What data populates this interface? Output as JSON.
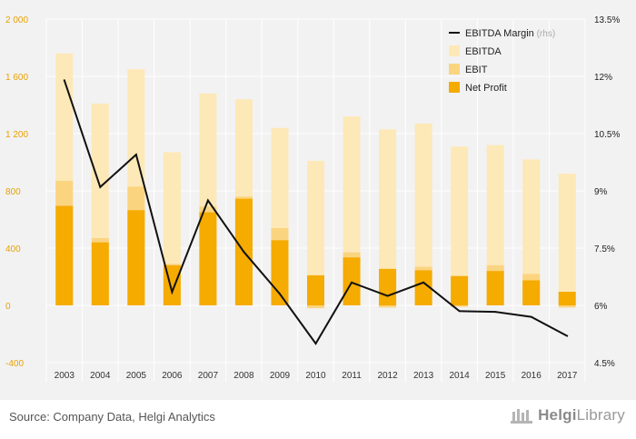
{
  "chart_data": {
    "type": "bar",
    "categories": [
      "2003",
      "2004",
      "2005",
      "2006",
      "2007",
      "2008",
      "2009",
      "2010",
      "2011",
      "2012",
      "2013",
      "2014",
      "2015",
      "2016",
      "2017"
    ],
    "series": [
      {
        "name": "EBITDA",
        "kind": "bar",
        "axis": "left",
        "color": "#fde8b8",
        "values": [
          1760,
          1410,
          1650,
          1070,
          1480,
          1440,
          1240,
          1010,
          1320,
          1230,
          1270,
          1110,
          1120,
          1020,
          920
        ]
      },
      {
        "name": "EBIT",
        "kind": "bar",
        "axis": "left",
        "color": "#fbd480",
        "values": [
          870,
          470,
          830,
          290,
          690,
          760,
          540,
          -20,
          370,
          -15,
          270,
          -10,
          280,
          220,
          -15
        ]
      },
      {
        "name": "Net Profit",
        "kind": "bar",
        "axis": "left",
        "color": "#f5ab00",
        "values": [
          695,
          440,
          665,
          280,
          650,
          745,
          455,
          210,
          335,
          255,
          245,
          205,
          240,
          175,
          95
        ]
      },
      {
        "name": "EBITDA Margin",
        "legend_suffix": "(rhs)",
        "kind": "line",
        "axis": "right",
        "color": "#111111",
        "values": [
          11.9,
          9.1,
          9.95,
          6.35,
          8.75,
          7.4,
          6.3,
          5.0,
          6.6,
          6.25,
          6.6,
          5.85,
          5.83,
          5.7,
          5.2
        ]
      }
    ],
    "left_axis": {
      "ticks": [
        "2 000",
        "1 600",
        "1 200",
        "800",
        "400",
        "0",
        "-400"
      ],
      "min": -400,
      "max": 2000,
      "color": "#e8a200"
    },
    "right_axis": {
      "ticks": [
        "13.5%",
        "12%",
        "10.5%",
        "9%",
        "7.5%",
        "6%",
        "4.5%"
      ],
      "min": 4.5,
      "max": 13.5
    },
    "grid": true,
    "legend_position": "top-right"
  },
  "footer": {
    "source": "Source: Company Data, Helgi Analytics",
    "logo_brand": "Helgi",
    "logo_suffix": "Library"
  }
}
